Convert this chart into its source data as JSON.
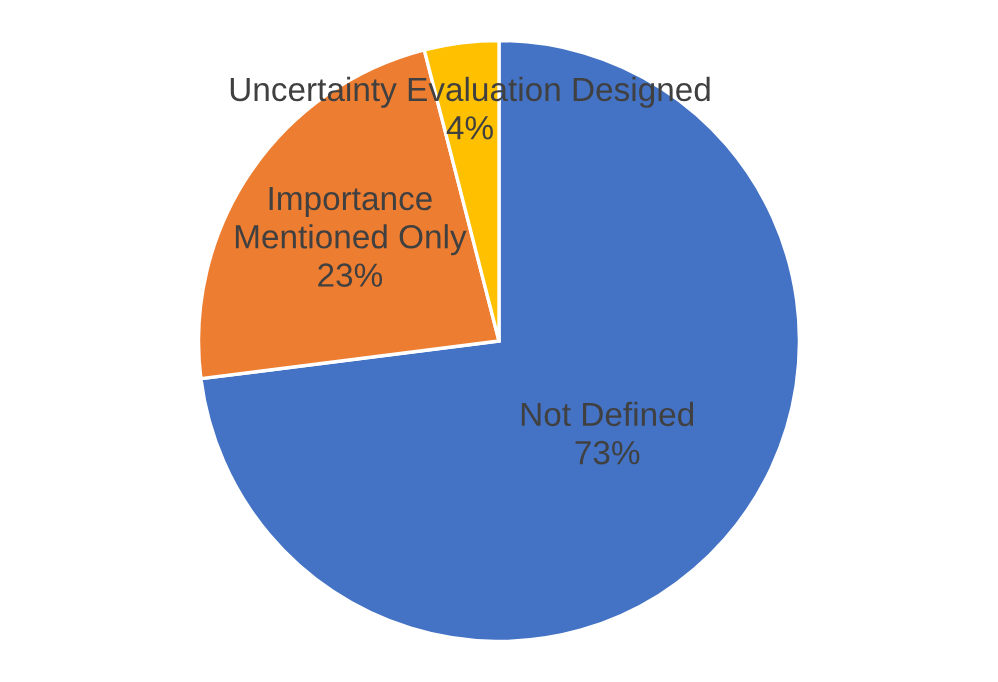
{
  "chart_data": {
    "type": "pie",
    "categories": [
      "Not Defined",
      "Importance\nMentioned Only",
      "Uncertainty Evaluation Designed"
    ],
    "values": [
      73,
      23,
      4
    ],
    "value_labels": [
      "73%",
      "23%",
      "4%"
    ],
    "colors": [
      "#4472c4",
      "#ed7d31",
      "#ffc000"
    ],
    "legend": false
  }
}
